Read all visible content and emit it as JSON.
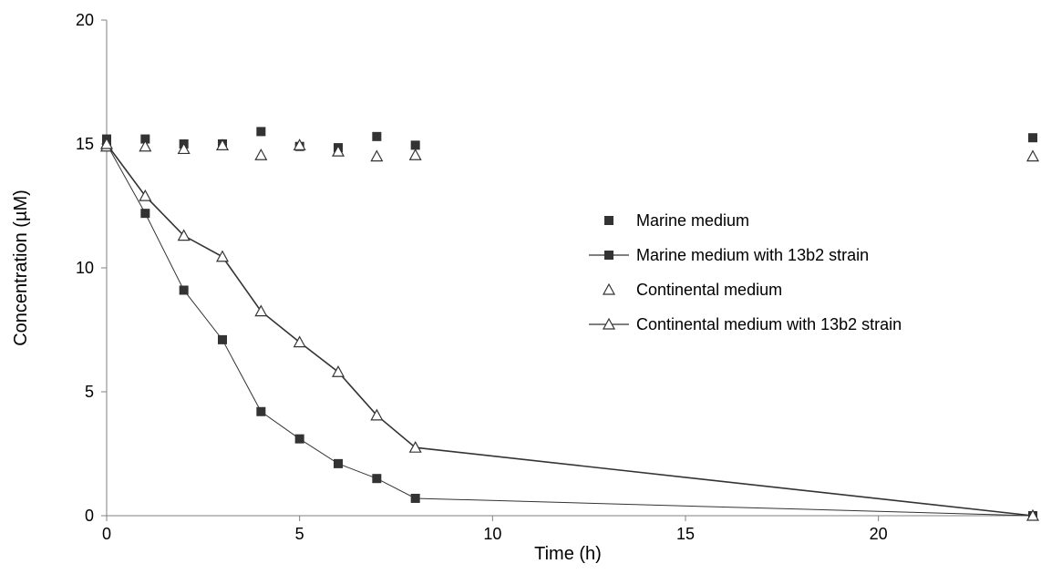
{
  "chart_data": {
    "type": "scatter",
    "xlabel": "Time (h)",
    "ylabel": "Concentration (µM)",
    "xlim": [
      0,
      24
    ],
    "ylim": [
      0,
      20
    ],
    "x_ticks": [
      "0",
      "5",
      "10",
      "15",
      "20"
    ],
    "y_ticks": [
      "0",
      "5",
      "10",
      "15",
      "20"
    ],
    "grid": false,
    "legend_position": "right",
    "series": [
      {
        "name": "Marine medium",
        "marker": "filled-square",
        "line": false,
        "color": "#333333",
        "x": [
          0,
          1,
          2,
          3,
          4,
          5,
          6,
          7,
          8,
          24
        ],
        "y": [
          15.2,
          15.2,
          15.0,
          15.0,
          15.5,
          14.9,
          14.85,
          15.3,
          14.95,
          15.25
        ]
      },
      {
        "name": "Marine medium with 13b2 strain",
        "marker": "filled-square",
        "line": true,
        "color": "#333333",
        "x": [
          0,
          1,
          2,
          3,
          4,
          5,
          6,
          7,
          8,
          24
        ],
        "y": [
          15.0,
          12.2,
          9.1,
          7.1,
          4.2,
          3.1,
          2.1,
          1.5,
          0.7,
          0.0
        ]
      },
      {
        "name": "Continental medium",
        "marker": "open-triangle",
        "line": false,
        "color": "#333333",
        "x": [
          0,
          1,
          2,
          3,
          4,
          5,
          6,
          7,
          8,
          24
        ],
        "y": [
          14.9,
          14.9,
          14.8,
          14.95,
          14.55,
          14.95,
          14.7,
          14.5,
          14.55,
          14.5
        ]
      },
      {
        "name": "Continental medium with 13b2 strain",
        "marker": "open-triangle",
        "line": true,
        "color": "#333333",
        "x": [
          0,
          1,
          2,
          3,
          4,
          5,
          6,
          7,
          8,
          24
        ],
        "y": [
          15.0,
          12.9,
          11.3,
          10.45,
          8.25,
          7.0,
          5.8,
          4.05,
          2.75,
          0.0
        ]
      }
    ]
  }
}
